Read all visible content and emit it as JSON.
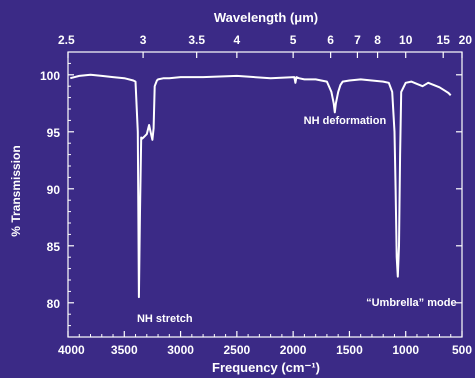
{
  "chart_data": {
    "type": "line",
    "colors": {
      "background": "#3b2a86",
      "line": "#ffffff"
    },
    "xlabel_bottom": "Frequency (cm⁻¹)",
    "xlabel_top": "Wavelength (μm)",
    "ylabel": "% Transmission",
    "xlim": [
      4000,
      500
    ],
    "ylim": [
      77,
      102
    ],
    "yticks": [
      80,
      85,
      90,
      95,
      100
    ],
    "xticks_bottom": [
      4000,
      3500,
      3000,
      2500,
      2000,
      1500,
      1000,
      500
    ],
    "xticks_top": [
      {
        "label": "2.5",
        "wavenumber": 4000
      },
      {
        "label": "3",
        "wavenumber": 3333
      },
      {
        "label": "3.5",
        "wavenumber": 2857
      },
      {
        "label": "4",
        "wavenumber": 2500
      },
      {
        "label": "5",
        "wavenumber": 2000
      },
      {
        "label": "6",
        "wavenumber": 1667
      },
      {
        "label": "7",
        "wavenumber": 1429
      },
      {
        "label": "8",
        "wavenumber": 1250
      },
      {
        "label": "10",
        "wavenumber": 1000
      },
      {
        "label": "15",
        "wavenumber": 667
      },
      {
        "label": "20",
        "wavenumber": 500
      }
    ],
    "annotations": [
      {
        "text": "NH stretch",
        "x": 3140,
        "y": 78.3
      },
      {
        "text": "NH deformation",
        "x": 1540,
        "y": 95.7
      },
      {
        "text": "“Umbrella” mode",
        "x": 950,
        "y": 79.7
      }
    ],
    "series": [
      {
        "x": [
          3980,
          3900,
          3800,
          3700,
          3600,
          3500,
          3420,
          3400,
          3380,
          3370,
          3360,
          3350,
          3340,
          3330,
          3320,
          3300,
          3280,
          3260,
          3250,
          3240,
          3230,
          3210,
          3200,
          3150,
          3100,
          3000,
          2800,
          2500,
          2200,
          1990,
          1980,
          1970,
          1950,
          1900,
          1800,
          1700,
          1660,
          1640,
          1630,
          1620,
          1600,
          1580,
          1560,
          1500,
          1400,
          1300,
          1200,
          1150,
          1120,
          1100,
          1090,
          1080,
          1070,
          1060,
          1050,
          1040,
          1000,
          950,
          900,
          850,
          800,
          750,
          700,
          650,
          620,
          600
        ],
        "y": [
          99.7,
          99.9,
          100.0,
          99.9,
          99.8,
          99.7,
          99.5,
          99.4,
          95.0,
          80.5,
          88.0,
          94.5,
          94.4,
          94.5,
          94.6,
          94.8,
          95.6,
          94.7,
          94.3,
          95.3,
          99.0,
          99.5,
          99.6,
          99.7,
          99.7,
          99.8,
          99.8,
          99.9,
          99.7,
          99.8,
          99.3,
          99.8,
          99.7,
          99.6,
          99.6,
          99.4,
          98.5,
          97.5,
          96.7,
          97.5,
          98.5,
          99.1,
          99.4,
          99.5,
          99.6,
          99.5,
          99.4,
          99.3,
          98.5,
          95.0,
          90.0,
          84.0,
          82.3,
          85.0,
          93.0,
          98.5,
          99.3,
          99.4,
          99.2,
          99.0,
          99.3,
          99.1,
          98.9,
          98.6,
          98.4,
          98.2
        ]
      }
    ]
  }
}
